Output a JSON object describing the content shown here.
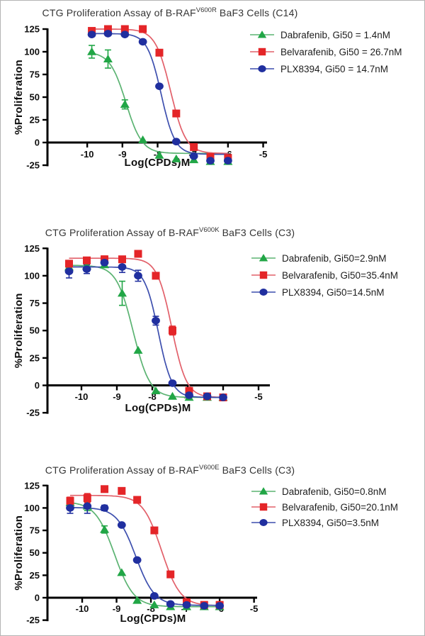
{
  "page": {
    "background": "#ffffff",
    "border_color": "#b4b4b4",
    "axis_color": "#000000",
    "figure_type": "dose-response curves, GraphPad style, 3 stacked panels"
  },
  "chart_data": [
    {
      "type": "line",
      "panel": "top",
      "title": {
        "prefix": "CTG Proliferation Assay of B-RAF",
        "sup": "V600R",
        "suffix": " BaF3 Cells (C14)"
      },
      "title_full": "CTG Proliferation Assay of B-RAF^V600R BaF3 Cells (C14)",
      "xlabel": "Log(CPDs)M",
      "ylabel": "%Proliferation",
      "xlim": [
        -11.13,
        -4.89
      ],
      "ylim": [
        -25,
        125
      ],
      "xticks": [
        -10,
        -9,
        -8,
        -7,
        -6,
        -5
      ],
      "yticks": [
        125,
        100,
        75,
        50,
        25,
        0,
        -25
      ],
      "grid": false,
      "legend_position": "right-top",
      "series": [
        {
          "name": "Dabrafenib",
          "gi50": "1.4nM",
          "legend": "Dabrafenib, Gi50 = 1.4nM",
          "marker": "triangle",
          "color": "#21a646",
          "line_color": "#5bb372",
          "x": [
            -9.87,
            -9.41,
            -8.93,
            -8.42,
            -7.95,
            -7.47,
            -6.97,
            -6.5,
            -6.0
          ],
          "y": [
            100,
            92,
            42,
            3,
            -14,
            -18,
            -19,
            -21,
            -21
          ],
          "err": [
            7,
            10,
            5,
            0,
            0,
            0,
            0,
            0,
            0
          ],
          "fit": {
            "top": 100,
            "bottom": -12,
            "logec50": -8.9,
            "hill": 1.9
          }
        },
        {
          "name": "Belvarafenib",
          "gi50": "26.7nM",
          "legend": "Belvarafenib, Gi50 = 26.7nM",
          "marker": "square",
          "color": "#e42528",
          "line_color": "#e2606a",
          "x": [
            -9.87,
            -9.41,
            -8.93,
            -8.42,
            -7.95,
            -7.47,
            -6.97,
            -6.5,
            -6.0
          ],
          "y": [
            123,
            125,
            125,
            125,
            99,
            32,
            -5,
            -16,
            -17
          ],
          "err": [
            0,
            0,
            0,
            0,
            0,
            0,
            0,
            0,
            0
          ],
          "fit": {
            "top": 125,
            "bottom": -12,
            "logec50": -7.63,
            "hill": 2.0
          }
        },
        {
          "name": "PLX8394",
          "gi50": "14.7nM",
          "legend": "PLX8394, Gi50 = 14.7nM",
          "marker": "circle",
          "color": "#202f9f",
          "line_color": "#3d4fae",
          "x": [
            -9.87,
            -9.41,
            -8.93,
            -8.42,
            -7.95,
            -7.47,
            -6.97,
            -6.5,
            -6.0
          ],
          "y": [
            119,
            120,
            119,
            111,
            62,
            1,
            -15,
            -20,
            -20
          ],
          "err": [
            0,
            0,
            0,
            0,
            0,
            0,
            0,
            0,
            0
          ],
          "fit": {
            "top": 120,
            "bottom": -13,
            "logec50": -7.9,
            "hill": 2.2
          }
        }
      ]
    },
    {
      "type": "line",
      "panel": "middle",
      "title": {
        "prefix": "CTG Proliferation Assay of B-RAF",
        "sup": "V600K",
        "suffix": " BaF3 Cells (C3)"
      },
      "title_full": "CTG Proliferation Assay of B-RAF^V600K BaF3 Cells (C3)",
      "xlabel": "Log(CPDs)M",
      "ylabel": "%Proliferation",
      "xlim": [
        -10.96,
        -4.68
      ],
      "ylim": [
        -25,
        125
      ],
      "xticks": [
        -10,
        -9,
        -8,
        -7,
        -6,
        -5
      ],
      "yticks": [
        125,
        100,
        75,
        50,
        25,
        0,
        -25
      ],
      "grid": false,
      "legend_position": "right-top",
      "series": [
        {
          "name": "Dabrafenib",
          "gi50": "2.9nM",
          "legend": "Dabrafenib, Gi50=2.9nM",
          "marker": "triangle",
          "color": "#21a646",
          "line_color": "#5bb372",
          "x": [
            -10.35,
            -9.85,
            -9.35,
            -8.85,
            -8.4,
            -7.9,
            -7.43,
            -6.96,
            -6.45,
            -6.0
          ],
          "y": [
            108,
            109,
            110,
            84,
            32,
            -5,
            -10,
            -11,
            -11,
            -11
          ],
          "err": [
            0,
            0,
            0,
            11,
            0,
            0,
            0,
            0,
            0,
            0
          ],
          "fit": {
            "top": 109.5,
            "bottom": -11,
            "logec50": -8.54,
            "hill": 1.85
          }
        },
        {
          "name": "Belvarafenib",
          "gi50": "35.4nM",
          "legend": "Belvarafenib, Gi50=35.4nM",
          "marker": "square",
          "color": "#e42528",
          "line_color": "#e2606a",
          "x": [
            -10.35,
            -9.85,
            -9.35,
            -8.85,
            -8.4,
            -7.9,
            -7.43,
            -6.96,
            -6.45,
            -6.0
          ],
          "y": [
            111,
            114,
            115,
            115,
            120,
            100,
            50,
            -5,
            -10,
            -11
          ],
          "err": [
            3,
            0,
            3,
            0,
            0,
            0,
            4,
            0,
            0,
            0
          ],
          "fit": {
            "top": 116,
            "bottom": -11,
            "logec50": -7.45,
            "hill": 2.1
          }
        },
        {
          "name": "PLX8394",
          "gi50": "14.5nM",
          "legend": "PLX8394, Gi50=14.5nM",
          "marker": "circle",
          "color": "#202f9f",
          "line_color": "#3d4fae",
          "x": [
            -10.35,
            -9.85,
            -9.35,
            -8.85,
            -8.4,
            -7.9,
            -7.43,
            -6.96,
            -6.45,
            -6.0
          ],
          "y": [
            104,
            106,
            112,
            108,
            100,
            59,
            2,
            -9,
            -10,
            -11
          ],
          "err": [
            6,
            4,
            4,
            5,
            5,
            4,
            0,
            0,
            0,
            0
          ],
          "fit": {
            "top": 108,
            "bottom": -11,
            "logec50": -7.83,
            "hill": 2.25
          }
        }
      ]
    },
    {
      "type": "line",
      "panel": "bottom",
      "title": {
        "prefix": "CTG Proliferation Assay of B-RAF",
        "sup": "V600E",
        "suffix": " BaF3 Cells (C3)"
      },
      "title_full": "CTG Proliferation Assay of B-RAF^V600E BaF3 Cells (C3)",
      "xlabel": "Log(CPDs)M",
      "ylabel": "%Proliferation",
      "xlim": [
        -11.01,
        -4.91
      ],
      "ylim": [
        -25,
        125
      ],
      "xticks": [
        -10,
        -9,
        -8,
        -7,
        -6,
        -5
      ],
      "yticks": [
        125,
        100,
        75,
        50,
        25,
        0,
        -25
      ],
      "grid": false,
      "legend_position": "right-top",
      "series": [
        {
          "name": "Dabrafenib",
          "gi50": "0.8nM",
          "legend": "Dabrafenib, Gi50=0.8nM",
          "marker": "triangle",
          "color": "#21a646",
          "line_color": "#5bb372",
          "x": [
            -10.35,
            -9.85,
            -9.35,
            -8.85,
            -8.4,
            -7.9,
            -7.43,
            -6.96,
            -6.45,
            -6.0
          ],
          "y": [
            106,
            102,
            76,
            28,
            -3,
            -8,
            -10,
            -10,
            -10,
            -10
          ],
          "err": [
            0,
            5,
            4,
            0,
            0,
            0,
            0,
            0,
            0,
            0
          ],
          "fit": {
            "top": 107,
            "bottom": -10,
            "logec50": -9.06,
            "hill": 1.55
          }
        },
        {
          "name": "Belvarafenib",
          "gi50": "20.1nM",
          "legend": "Belvarafenib, Gi50=20.1nM",
          "marker": "square",
          "color": "#e42528",
          "line_color": "#e2606a",
          "x": [
            -10.35,
            -9.85,
            -9.35,
            -8.85,
            -8.4,
            -7.9,
            -7.43,
            -6.96,
            -6.45,
            -6.0
          ],
          "y": [
            108,
            111,
            121,
            119,
            109,
            75,
            26,
            -5,
            -8,
            -8
          ],
          "err": [
            4,
            5,
            0,
            0,
            0,
            0,
            3,
            0,
            0,
            0
          ],
          "fit": {
            "top": 114,
            "bottom": -9,
            "logec50": -7.69,
            "hill": 1.6
          }
        },
        {
          "name": "PLX8394",
          "gi50": "3.5nM",
          "legend": "PLX8394, Gi50=3.5nM",
          "marker": "circle",
          "color": "#202f9f",
          "line_color": "#3d4fae",
          "x": [
            -10.35,
            -9.85,
            -9.35,
            -8.85,
            -8.4,
            -7.9,
            -7.43,
            -6.96,
            -6.45,
            -6.0
          ],
          "y": [
            100,
            102,
            100,
            81,
            42,
            2,
            -7,
            -8,
            -9,
            -9
          ],
          "err": [
            6,
            8,
            3,
            0,
            0,
            0,
            0,
            0,
            0,
            0
          ],
          "fit": {
            "top": 100.5,
            "bottom": -8.5,
            "logec50": -8.44,
            "hill": 1.6
          }
        }
      ]
    }
  ]
}
